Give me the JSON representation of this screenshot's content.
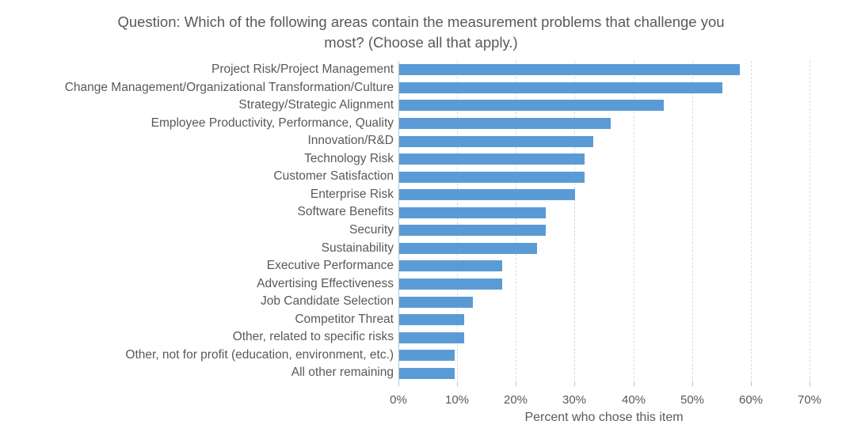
{
  "title": "Question: Which of the following areas contain the measurement problems that challenge you most? (Choose all that apply.)",
  "chart_data": {
    "type": "bar",
    "orientation": "horizontal",
    "title": "Question: Which of the following areas contain the measurement problems that challenge you most? (Choose all that apply.)",
    "categories": [
      "Project Risk/Project Management",
      "Change Management/Organizational Transformation/Culture",
      "Strategy/Strategic Alignment",
      "Employee Productivity, Performance, Quality",
      "Innovation/R&D",
      "Technology Risk",
      "Customer Satisfaction",
      "Enterprise Risk",
      "Software Benefits",
      "Security",
      "Sustainability",
      "Executive Performance",
      "Advertising Effectiveness",
      "Job Candidate Selection",
      "Competitor Threat",
      "Other, related to specific risks",
      "Other, not for profit (education, environment, etc.)",
      "All other remaining"
    ],
    "values": [
      58,
      55,
      45,
      36,
      33,
      31.5,
      31.5,
      30,
      25,
      25,
      23.5,
      17.5,
      17.5,
      12.5,
      11,
      11,
      9.5,
      9.5
    ],
    "xlabel": "Percent who chose this item",
    "ylabel": "",
    "x_ticks": [
      "0%",
      "10%",
      "20%",
      "30%",
      "40%",
      "50%",
      "60%",
      "70%"
    ],
    "xlim": [
      0,
      70
    ],
    "grid": true,
    "legend_position": "none",
    "bar_color": "#5b9bd5",
    "gridline_color": "#d9d9d9",
    "axis_color": "#bfbfbf",
    "text_color": "#595959"
  }
}
